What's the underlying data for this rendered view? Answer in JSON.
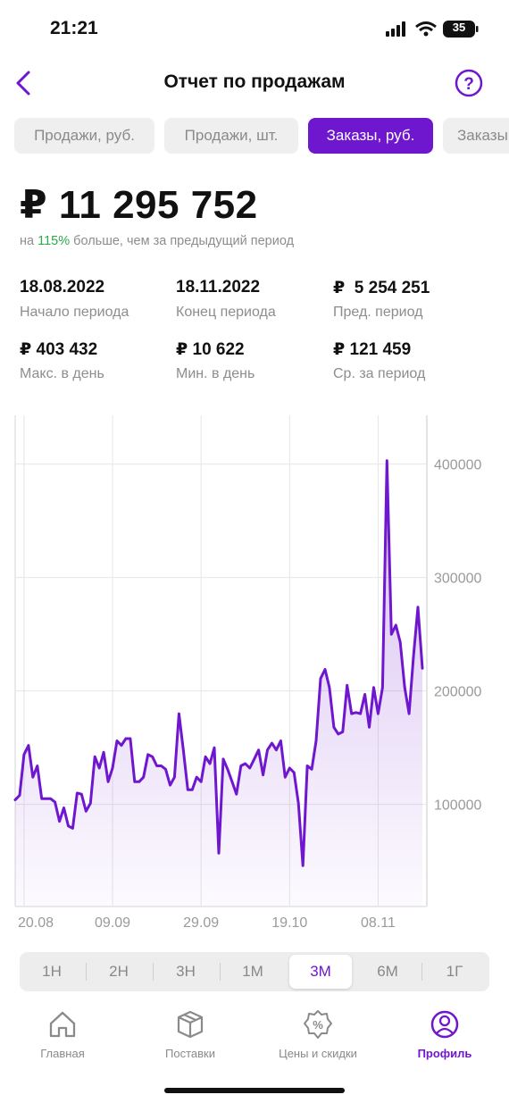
{
  "status_bar": {
    "time": "21:21",
    "battery": "35"
  },
  "header": {
    "title": "Отчет по продажам"
  },
  "tabs": [
    {
      "label": "Продажи, руб."
    },
    {
      "label": "Продажи, шт."
    },
    {
      "label": "Заказы, руб.",
      "active": true
    },
    {
      "label": "Заказы"
    }
  ],
  "summary": {
    "total": "₽ 11 295 752",
    "comparison_prefix": "на",
    "comparison_percent": "115%",
    "comparison_suffix": "больше, чем за предыдущий период"
  },
  "stats": [
    {
      "value": "18.08.2022",
      "label": "Начало периода"
    },
    {
      "value": "18.11.2022",
      "label": "Конец периода"
    },
    {
      "value": "₽  5 254 251",
      "label": "Пред. период"
    },
    {
      "value": "₽ 403 432",
      "label": "Макс. в день"
    },
    {
      "value": "₽ 10 622",
      "label": "Мин. в день"
    },
    {
      "value": "₽ 121 459",
      "label": "Ср. за период"
    }
  ],
  "chart_data": {
    "type": "line",
    "color": "#6f17cf",
    "x": [
      "18.08",
      "19.08",
      "20.08",
      "21.08",
      "22.08",
      "23.08",
      "24.08",
      "25.08",
      "26.08",
      "27.08",
      "28.08",
      "29.08",
      "30.08",
      "31.08",
      "01.09",
      "02.09",
      "03.09",
      "04.09",
      "05.09",
      "06.09",
      "07.09",
      "08.09",
      "09.09",
      "10.09",
      "11.09",
      "12.09",
      "13.09",
      "14.09",
      "15.09",
      "16.09",
      "17.09",
      "18.09",
      "19.09",
      "20.09",
      "21.09",
      "22.09",
      "23.09",
      "24.09",
      "25.09",
      "26.09",
      "27.09",
      "28.09",
      "29.09",
      "30.09",
      "01.10",
      "02.10",
      "03.10",
      "04.10",
      "05.10",
      "06.10",
      "07.10",
      "08.10",
      "09.10",
      "10.10",
      "11.10",
      "12.10",
      "13.10",
      "14.10",
      "15.10",
      "16.10",
      "17.10",
      "18.10",
      "19.10",
      "20.10",
      "21.10",
      "22.10",
      "23.10",
      "24.10",
      "25.10",
      "26.10",
      "27.10",
      "28.10",
      "29.10",
      "30.10",
      "31.10",
      "01.11",
      "02.11",
      "03.11",
      "04.11",
      "05.11",
      "06.11",
      "07.11",
      "08.11",
      "09.11",
      "10.11",
      "11.11",
      "12.11",
      "13.11",
      "14.11",
      "15.11",
      "16.11",
      "17.11",
      "18.11"
    ],
    "series": [
      {
        "name": "Заказы, руб.",
        "color": "#6f17cf",
        "values": [
          104000,
          108000,
          144000,
          152000,
          124000,
          134000,
          105000,
          105000,
          105000,
          102000,
          85000,
          97000,
          81000,
          79000,
          110000,
          109000,
          94000,
          101000,
          142000,
          132000,
          146000,
          120000,
          132000,
          156000,
          152000,
          158000,
          158000,
          120000,
          120000,
          124000,
          144000,
          142000,
          134000,
          134000,
          131000,
          117000,
          124000,
          180000,
          148000,
          113000,
          113000,
          124000,
          120000,
          142000,
          136000,
          150000,
          57000,
          140000,
          131000,
          120000,
          109000,
          134000,
          136000,
          132000,
          140000,
          148000,
          126000,
          148000,
          154000,
          148000,
          156000,
          124000,
          132000,
          128000,
          101000,
          46000,
          134000,
          131000,
          156000,
          211000,
          219000,
          203000,
          168000,
          162000,
          164000,
          205000,
          180000,
          181000,
          180000,
          197000,
          168000,
          203000,
          180000,
          203000,
          403000,
          250000,
          258000,
          243000,
          203000,
          180000,
          231000,
          274000,
          220000
        ]
      }
    ],
    "xticks": [
      "20.08",
      "09.09",
      "29.09",
      "19.10",
      "08.11"
    ],
    "ylim": [
      10000,
      443000
    ],
    "yticks": [
      100000,
      200000,
      300000,
      400000
    ],
    "grid": true
  },
  "periods": [
    {
      "label": "1Н"
    },
    {
      "label": "2Н"
    },
    {
      "label": "3Н"
    },
    {
      "label": "1М"
    },
    {
      "label": "3М",
      "active": true
    },
    {
      "label": "6М"
    },
    {
      "label": "1Г"
    }
  ],
  "nav": [
    {
      "label": "Главная"
    },
    {
      "label": "Поставки"
    },
    {
      "label": "Цены и скидки"
    },
    {
      "label": "Профиль",
      "active": true
    }
  ]
}
